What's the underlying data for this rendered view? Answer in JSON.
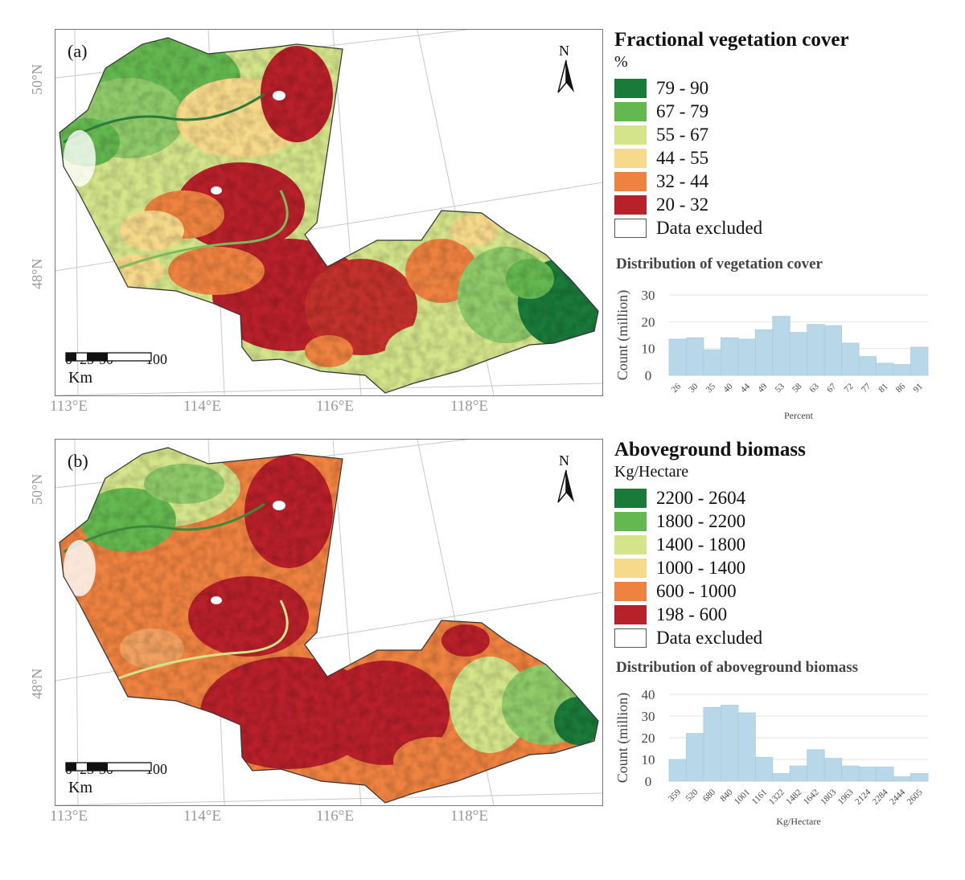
{
  "panels": [
    {
      "id": "a",
      "label": "(a)",
      "lat_labels": [
        "50°N",
        "48°N"
      ],
      "lon_labels": [
        "113°E",
        "114°E",
        "116°E",
        "118°E"
      ],
      "north_label": "N",
      "scale": {
        "ticks": [
          "0",
          "25",
          "50",
          "100"
        ],
        "unit": "Km"
      },
      "legend": {
        "title": "Fractional vegetation cover",
        "unit": "%",
        "classes": [
          {
            "label": "79 - 90",
            "color": "#1a7a3a"
          },
          {
            "label": "67 - 79",
            "color": "#64b850"
          },
          {
            "label": "55 - 67",
            "color": "#d3e48a"
          },
          {
            "label": "44 - 55",
            "color": "#f6d98a"
          },
          {
            "label": "32 - 44",
            "color": "#ee8240"
          },
          {
            "label": "20 - 32",
            "color": "#b8202a"
          },
          {
            "label": "Data excluded",
            "color": "#ffffff"
          }
        ]
      },
      "histogram": {
        "title": "Distribution of vegetation cover",
        "xlabel": "Percent",
        "ylabel": "Count (million)",
        "ylim": [
          0,
          30
        ],
        "yticks": [
          0,
          10,
          20,
          30
        ],
        "categories": [
          "26",
          "30",
          "35",
          "40",
          "44",
          "49",
          "53",
          "58",
          "63",
          "67",
          "72",
          "77",
          "81",
          "86",
          "91"
        ],
        "values": [
          13.5,
          14,
          9.5,
          14,
          13.5,
          17,
          22,
          16,
          19,
          18.5,
          12,
          7,
          4.5,
          4,
          10.5
        ],
        "color": "#b8d8ea"
      }
    },
    {
      "id": "b",
      "label": "(b)",
      "lat_labels": [
        "50°N",
        "48°N"
      ],
      "lon_labels": [
        "113°E",
        "114°E",
        "116°E",
        "118°E"
      ],
      "north_label": "N",
      "scale": {
        "ticks": [
          "0",
          "25",
          "50",
          "100"
        ],
        "unit": "Km"
      },
      "legend": {
        "title": "Aboveground biomass",
        "unit": "Kg/Hectare",
        "classes": [
          {
            "label": "2200 - 2604",
            "color": "#1a7a3a"
          },
          {
            "label": "1800 - 2200",
            "color": "#64b850"
          },
          {
            "label": "1400 - 1800",
            "color": "#d3e48a"
          },
          {
            "label": "1000 - 1400",
            "color": "#f6d98a"
          },
          {
            "label": "600 - 1000",
            "color": "#ee8240"
          },
          {
            "label": "198 - 600",
            "color": "#b8202a"
          },
          {
            "label": "Data excluded",
            "color": "#ffffff"
          }
        ]
      },
      "histogram": {
        "title": "Distribution of aboveground biomass",
        "xlabel": "Kg/Hectare",
        "ylabel": "Count (million)",
        "ylim": [
          0,
          40
        ],
        "yticks": [
          0,
          10,
          20,
          30,
          40
        ],
        "categories": [
          "359",
          "520",
          "680",
          "840",
          "1001",
          "1161",
          "1322",
          "1482",
          "1642",
          "1803",
          "1963",
          "2124",
          "2284",
          "2444",
          "2605"
        ],
        "values": [
          10,
          22,
          34,
          35,
          31.5,
          11,
          3.5,
          7,
          14.5,
          10.5,
          7,
          6.5,
          6.5,
          2,
          3.5
        ],
        "color": "#b8d8ea"
      }
    }
  ]
}
